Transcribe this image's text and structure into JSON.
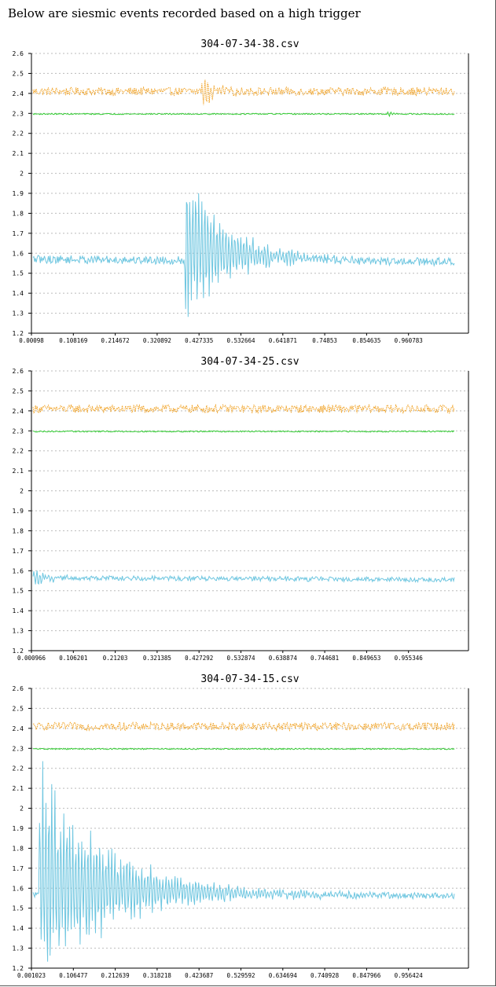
{
  "heading": "Below are siesmic events recorded based on a high trigger",
  "colors": {
    "blue": "#6ec6e0",
    "orange": "#f0a020",
    "green": "#33cc33",
    "grid": "#bbbbbb",
    "axis": "#000000"
  },
  "chart_data": [
    {
      "type": "line",
      "title": "304-07-34-38.csv",
      "ylim": [
        1.2,
        2.6
      ],
      "yticks": [
        "1.2",
        "1.3",
        "1.4",
        "1.5",
        "1.6",
        "1.7",
        "1.8",
        "1.9",
        "2",
        "2.1",
        "2.2",
        "2.3",
        "2.4",
        "2.5",
        "2.6"
      ],
      "x_ticks": [
        "0.00098",
        "0.108169",
        "0.214672",
        "0.320892",
        "0.427335",
        "0.532664",
        "0.641871",
        "0.74853",
        "0.854635",
        "0.960783"
      ],
      "grid": true,
      "series": [
        {
          "color": "orange",
          "base": 2.41,
          "noise": 0.02,
          "events": [
            {
              "pos": 0.4,
              "amp": 0.06,
              "decay": 30
            }
          ]
        },
        {
          "color": "green",
          "base": 2.297,
          "noise": 0.003,
          "events": [
            {
              "pos": 0.84,
              "amp": 0.015,
              "decay": 80
            }
          ]
        },
        {
          "color": "blue",
          "base": 1.57,
          "noise": 0.02,
          "trend": -0.015,
          "events": [
            {
              "pos": 0.36,
              "amp": 0.32,
              "decay": 10,
              "plateau": 0.08,
              "plateau_decay": 6
            }
          ]
        }
      ]
    },
    {
      "type": "line",
      "title": "304-07-34-25.csv",
      "ylim": [
        1.2,
        2.6
      ],
      "yticks": [
        "1.2",
        "1.3",
        "1.4",
        "1.5",
        "1.6",
        "1.7",
        "1.8",
        "1.9",
        "2",
        "2.1",
        "2.2",
        "2.3",
        "2.4",
        "2.5",
        "2.6"
      ],
      "x_ticks": [
        "0.000966",
        "0.106201",
        "0.21203",
        "0.321385",
        "0.427292",
        "0.532874",
        "0.638874",
        "0.744681",
        "0.849653",
        "0.955346"
      ],
      "grid": true,
      "series": [
        {
          "color": "orange",
          "base": 2.41,
          "noise": 0.02,
          "events": []
        },
        {
          "color": "green",
          "base": 2.297,
          "noise": 0.003,
          "events": []
        },
        {
          "color": "blue",
          "base": 1.565,
          "noise": 0.012,
          "trend": -0.01,
          "events": [
            {
              "pos": 0.0,
              "amp": 0.04,
              "decay": 30
            }
          ]
        }
      ]
    },
    {
      "type": "line",
      "title": "304-07-34-15.csv",
      "ylim": [
        1.2,
        2.6
      ],
      "yticks": [
        "1.2",
        "1.3",
        "1.4",
        "1.5",
        "1.6",
        "1.7",
        "1.8",
        "1.9",
        "2",
        "2.1",
        "2.2",
        "2.3",
        "2.4",
        "2.5",
        "2.6"
      ],
      "x_ticks": [
        "0.001023",
        "0.106477",
        "0.212639",
        "0.318218",
        "0.423687",
        "0.529592",
        "0.634694",
        "0.740928",
        "0.847966",
        "0.956424"
      ],
      "grid": true,
      "series": [
        {
          "color": "orange",
          "base": 2.41,
          "noise": 0.02,
          "events": []
        },
        {
          "color": "green",
          "base": 2.297,
          "noise": 0.003,
          "events": []
        },
        {
          "color": "blue",
          "base": 1.57,
          "noise": 0.015,
          "trend": -0.01,
          "events": [
            {
              "pos": 0.015,
              "amp": 0.45,
              "decay": 6,
              "plateau": 0.07,
              "plateau_decay": 4
            }
          ]
        }
      ]
    }
  ]
}
